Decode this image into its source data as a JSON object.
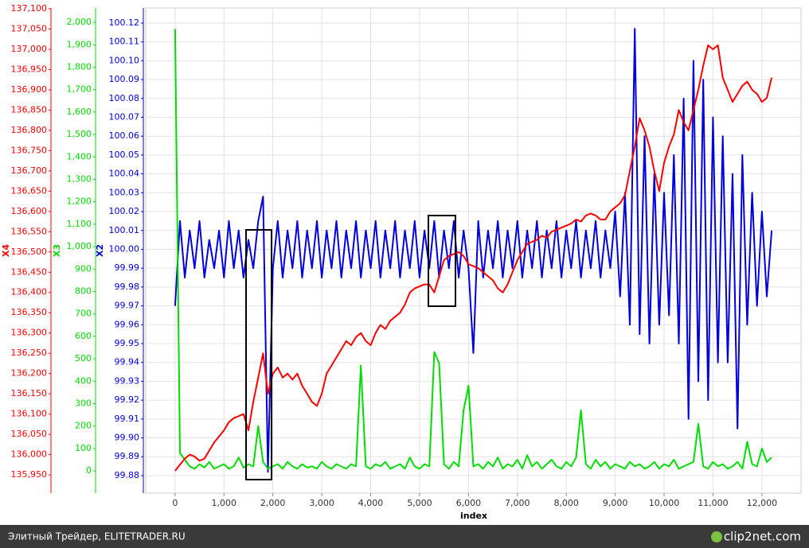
{
  "chart_data": {
    "type": "line",
    "xlabel": "index",
    "grid": true,
    "xlim": [
      -600,
      12800
    ],
    "xticks": [
      0,
      {
        "value": 1000,
        "label": "1,000"
      },
      {
        "value": 2000,
        "label": "2,000"
      },
      {
        "value": 3000,
        "label": "3,000"
      },
      {
        "value": 4000,
        "label": "4,000"
      },
      {
        "value": 5000,
        "label": "5,000"
      },
      {
        "value": 6000,
        "label": "6,000"
      },
      {
        "value": 7000,
        "label": "7,000"
      },
      {
        "value": 8000,
        "label": "8,000"
      },
      {
        "value": 9000,
        "label": "9,000"
      },
      {
        "value": 10000,
        "label": "10,000"
      },
      {
        "value": 11000,
        "label": "11,000"
      },
      {
        "value": 12000,
        "label": "12,000"
      }
    ],
    "x": [
      0,
      100,
      200,
      300,
      400,
      500,
      600,
      700,
      800,
      900,
      1000,
      1100,
      1200,
      1300,
      1400,
      1500,
      1600,
      1700,
      1800,
      1900,
      2000,
      2100,
      2200,
      2300,
      2400,
      2500,
      2600,
      2700,
      2800,
      2900,
      3000,
      3100,
      3200,
      3300,
      3400,
      3500,
      3600,
      3700,
      3800,
      3900,
      4000,
      4100,
      4200,
      4300,
      4400,
      4500,
      4600,
      4700,
      4800,
      4900,
      5000,
      5100,
      5200,
      5300,
      5400,
      5500,
      5600,
      5700,
      5800,
      5900,
      6000,
      6100,
      6200,
      6300,
      6400,
      6500,
      6600,
      6700,
      6800,
      6900,
      7000,
      7100,
      7200,
      7300,
      7400,
      7500,
      7600,
      7700,
      7800,
      7900,
      8000,
      8100,
      8200,
      8300,
      8400,
      8500,
      8600,
      8700,
      8800,
      8900,
      9000,
      9100,
      9200,
      9300,
      9400,
      9500,
      9600,
      9700,
      9800,
      9900,
      10000,
      10100,
      10200,
      10300,
      10400,
      10500,
      10600,
      10700,
      10800,
      10900,
      11000,
      11100,
      11200,
      11300,
      11400,
      11500,
      11600,
      11700,
      11800,
      11900,
      12000,
      12100,
      12200
    ],
    "series": [
      {
        "name": "X4",
        "color": "#ff0000",
        "ylim": [
          135905,
          137102
        ],
        "yticks": [
          {
            "value": 135950,
            "label": "135,950"
          },
          {
            "value": 136000,
            "label": "136,000"
          },
          {
            "value": 136050,
            "label": "136,050"
          },
          {
            "value": 136100,
            "label": "136,100"
          },
          {
            "value": 136150,
            "label": "136,150"
          },
          {
            "value": 136200,
            "label": "136,200"
          },
          {
            "value": 136250,
            "label": "136,250"
          },
          {
            "value": 136300,
            "label": "136,300"
          },
          {
            "value": 136350,
            "label": "136,350"
          },
          {
            "value": 136400,
            "label": "136,400"
          },
          {
            "value": 136450,
            "label": "136,450"
          },
          {
            "value": 136500,
            "label": "136,500"
          },
          {
            "value": 136550,
            "label": "136,550"
          },
          {
            "value": 136600,
            "label": "136,600"
          },
          {
            "value": 136650,
            "label": "136,650"
          },
          {
            "value": 136700,
            "label": "136,700"
          },
          {
            "value": 136750,
            "label": "136,750"
          },
          {
            "value": 136800,
            "label": "136,800"
          },
          {
            "value": 136850,
            "label": "136,850"
          },
          {
            "value": 136900,
            "label": "136,900"
          },
          {
            "value": 136950,
            "label": "136,950"
          },
          {
            "value": 137000,
            "label": "137,000"
          },
          {
            "value": 137050,
            "label": "137,050"
          },
          {
            "value": 137100,
            "label": "137,100"
          }
        ],
        "values": [
          135960,
          135975,
          135990,
          136000,
          135995,
          135985,
          135990,
          136010,
          136030,
          136045,
          136060,
          136080,
          136090,
          136095,
          136100,
          136060,
          136130,
          136190,
          136250,
          136150,
          136200,
          136215,
          136190,
          136200,
          136185,
          136200,
          136170,
          136150,
          136130,
          136120,
          136150,
          136200,
          136220,
          136240,
          136260,
          136280,
          136270,
          136290,
          136300,
          136280,
          136270,
          136300,
          136320,
          136310,
          136330,
          136340,
          136350,
          136370,
          136400,
          136410,
          136415,
          136420,
          136420,
          136400,
          136440,
          136480,
          136490,
          136495,
          136500,
          136490,
          136470,
          136465,
          136460,
          136450,
          136440,
          136430,
          136410,
          136400,
          136420,
          136450,
          136480,
          136500,
          136520,
          136525,
          136530,
          136540,
          136535,
          136550,
          136555,
          136560,
          136565,
          136570,
          136580,
          136575,
          136590,
          136595,
          136590,
          136580,
          136580,
          136600,
          136610,
          136620,
          136640,
          136700,
          136760,
          136830,
          136800,
          136760,
          136700,
          136650,
          136720,
          136760,
          136790,
          136850,
          136820,
          136800,
          136850,
          136900,
          136960,
          137010,
          137000,
          137010,
          136930,
          136900,
          136870,
          136890,
          136910,
          136920,
          136900,
          136890,
          136870,
          136880,
          136930
        ]
      },
      {
        "name": "X3",
        "color": "#00dd00",
        "ylim": [
          -99,
          2064
        ],
        "yticks": [
          0,
          100,
          200,
          300,
          400,
          500,
          600,
          700,
          800,
          900,
          {
            "value": 1000,
            "label": "1,000"
          },
          {
            "value": 1100,
            "label": "1,100"
          },
          {
            "value": 1200,
            "label": "1,200"
          },
          {
            "value": 1300,
            "label": "1,300"
          },
          {
            "value": 1400,
            "label": "1,400"
          },
          {
            "value": 1500,
            "label": "1,500"
          },
          {
            "value": 1600,
            "label": "1,600"
          },
          {
            "value": 1700,
            "label": "1,700"
          },
          {
            "value": 1800,
            "label": "1,800"
          },
          {
            "value": 1900,
            "label": "1,900"
          },
          {
            "value": 2000,
            "label": "2,000"
          }
        ],
        "values": [
          1970,
          80,
          50,
          20,
          10,
          30,
          15,
          40,
          10,
          20,
          30,
          10,
          20,
          60,
          15,
          30,
          20,
          200,
          40,
          10,
          20,
          30,
          10,
          40,
          20,
          10,
          30,
          15,
          20,
          10,
          40,
          20,
          10,
          30,
          20,
          10,
          30,
          20,
          470,
          20,
          10,
          30,
          20,
          40,
          10,
          20,
          30,
          10,
          60,
          20,
          10,
          30,
          20,
          530,
          480,
          30,
          10,
          40,
          20,
          270,
          380,
          20,
          30,
          10,
          40,
          20,
          60,
          10,
          30,
          20,
          50,
          10,
          70,
          20,
          40,
          10,
          30,
          50,
          20,
          10,
          40,
          20,
          60,
          270,
          30,
          10,
          50,
          20,
          40,
          10,
          30,
          20,
          10,
          40,
          20,
          30,
          10,
          20,
          40,
          10,
          30,
          20,
          50,
          10,
          20,
          30,
          40,
          210,
          20,
          10,
          40,
          20,
          30,
          10,
          20,
          40,
          10,
          130,
          30,
          20,
          100,
          40,
          60
        ]
      },
      {
        "name": "X2",
        "color": "#0000dd",
        "ylim": [
          99.8707,
          100.128
        ],
        "yticks": [
          99.88,
          99.89,
          {
            "value": 99.9,
            "label": "99.90"
          },
          99.91,
          99.92,
          99.93,
          99.94,
          99.95,
          99.96,
          99.97,
          99.98,
          99.99,
          {
            "value": 100,
            "label": "100.00"
          },
          100.01,
          100.02,
          100.03,
          100.04,
          100.05,
          100.06,
          100.07,
          100.08,
          100.09,
          {
            "value": 100.1,
            "label": "100.10"
          },
          100.11,
          100.12
        ],
        "values": [
          99.97,
          100.015,
          99.985,
          100.01,
          99.99,
          100.015,
          99.985,
          100.005,
          99.99,
          100.01,
          99.985,
          100.015,
          99.99,
          100.01,
          99.985,
          100.005,
          99.99,
          100.015,
          100.028,
          99.882,
          99.99,
          100.015,
          99.985,
          100.01,
          99.99,
          100.015,
          99.985,
          100.01,
          99.99,
          100.015,
          99.985,
          100.01,
          99.99,
          100.015,
          99.985,
          100.01,
          99.99,
          100.015,
          99.985,
          100.01,
          99.99,
          100.015,
          99.985,
          100.01,
          99.99,
          100.015,
          99.985,
          100.01,
          99.99,
          100.015,
          99.985,
          100.01,
          99.99,
          100.015,
          99.985,
          100.01,
          99.99,
          100.015,
          99.985,
          100.01,
          99.99,
          99.945,
          100.015,
          99.985,
          100.01,
          99.99,
          100.015,
          99.985,
          100.01,
          99.99,
          100.015,
          99.985,
          100.01,
          99.99,
          100.015,
          99.985,
          100.01,
          99.99,
          100.015,
          99.985,
          100.01,
          99.99,
          100.015,
          99.985,
          100.01,
          99.99,
          100.015,
          99.985,
          100.01,
          99.99,
          100.02,
          99.975,
          100.03,
          99.96,
          100.117,
          99.955,
          100.06,
          99.95,
          100.04,
          99.96,
          100.03,
          99.965,
          100.05,
          99.95,
          100.08,
          99.91,
          100.1,
          99.93,
          100.09,
          99.92,
          100.07,
          99.94,
          100.06,
          99.94,
          100.04,
          99.905,
          100.05,
          99.96,
          100.03,
          99.97,
          100.02,
          99.975,
          100.01
        ]
      }
    ]
  },
  "footer": {
    "left": "Элитный Трейдер, ELITETRADER.RU",
    "right": "clip2net.com"
  }
}
